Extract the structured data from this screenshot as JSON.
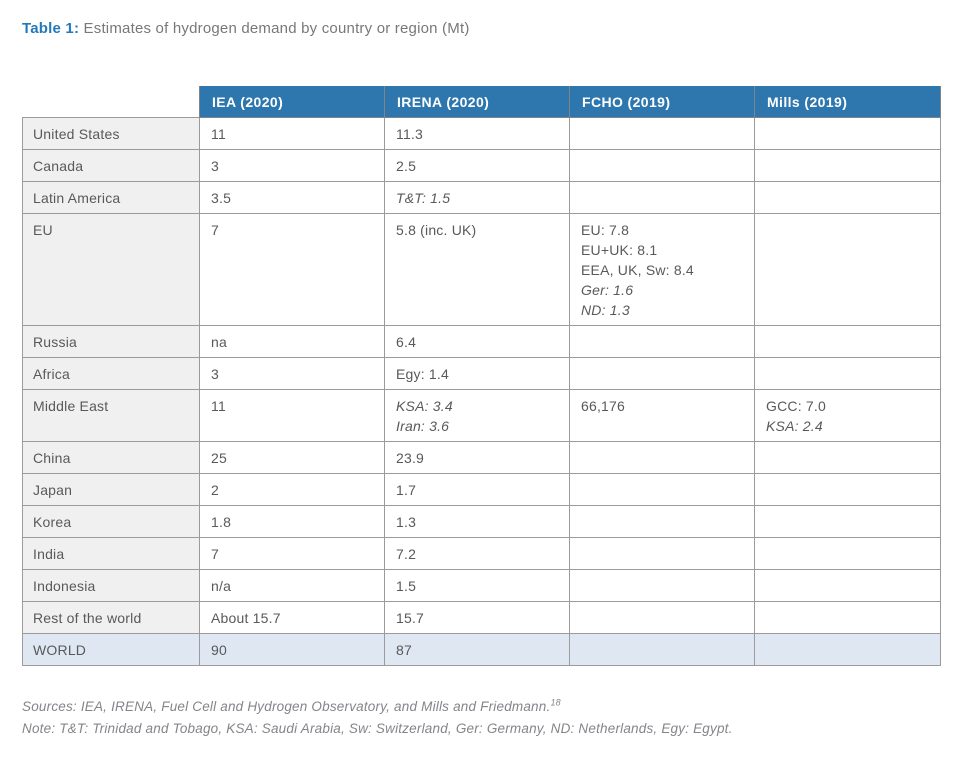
{
  "page": {
    "title_label": "Table 1:",
    "title_text": " Estimates of hydrogen demand by country or region (Mt)"
  },
  "table": {
    "headers": [
      "IEA (2020)",
      "IRENA (2020)",
      "FCHO (2019)",
      "Mills (2019)"
    ],
    "rows": [
      {
        "region": "United States",
        "cells": [
          [
            {
              "t": "11"
            }
          ],
          [
            {
              "t": "11.3"
            }
          ],
          [],
          []
        ]
      },
      {
        "region": "Canada",
        "cells": [
          [
            {
              "t": "3"
            }
          ],
          [
            {
              "t": "2.5"
            }
          ],
          [],
          []
        ]
      },
      {
        "region": "Latin America",
        "cells": [
          [
            {
              "t": "3.5"
            }
          ],
          [
            {
              "t": "T&T: 1.5",
              "i": true
            }
          ],
          [],
          []
        ]
      },
      {
        "region": "EU",
        "cells": [
          [
            {
              "t": "7"
            }
          ],
          [
            {
              "t": "5.8 (inc. UK)"
            }
          ],
          [
            {
              "t": "EU: 7.8"
            },
            {
              "t": "EU+UK: 8.1"
            },
            {
              "t": "EEA, UK, Sw: 8.4"
            },
            {
              "t": "Ger: 1.6",
              "i": true
            },
            {
              "t": "ND: 1.3",
              "i": true
            }
          ],
          []
        ]
      },
      {
        "region": "Russia",
        "cells": [
          [
            {
              "t": "na"
            }
          ],
          [
            {
              "t": "6.4"
            }
          ],
          [],
          []
        ]
      },
      {
        "region": "Africa",
        "cells": [
          [
            {
              "t": "3"
            }
          ],
          [
            {
              "t": "Egy: 1.4"
            }
          ],
          [],
          []
        ]
      },
      {
        "region": "Middle East",
        "cells": [
          [
            {
              "t": "11"
            }
          ],
          [
            {
              "t": "KSA: 3.4",
              "i": true
            },
            {
              "t": "Iran: 3.6",
              "i": true
            }
          ],
          [
            {
              "t": "66,176"
            }
          ],
          [
            {
              "t": "GCC: 7.0"
            },
            {
              "t": "KSA: 2.4",
              "i": true
            }
          ]
        ]
      },
      {
        "region": "China",
        "cells": [
          [
            {
              "t": "25"
            }
          ],
          [
            {
              "t": "23.9"
            }
          ],
          [],
          []
        ]
      },
      {
        "region": "Japan",
        "cells": [
          [
            {
              "t": "2"
            }
          ],
          [
            {
              "t": "1.7"
            }
          ],
          [],
          []
        ]
      },
      {
        "region": "Korea",
        "cells": [
          [
            {
              "t": "1.8"
            }
          ],
          [
            {
              "t": "1.3"
            }
          ],
          [],
          []
        ]
      },
      {
        "region": "India",
        "cells": [
          [
            {
              "t": "7"
            }
          ],
          [
            {
              "t": "7.2"
            }
          ],
          [],
          []
        ]
      },
      {
        "region": "Indonesia",
        "cells": [
          [
            {
              "t": "n/a"
            }
          ],
          [
            {
              "t": "1.5"
            }
          ],
          [],
          []
        ]
      },
      {
        "region": "Rest of the world",
        "cells": [
          [
            {
              "t": "About 15.7"
            }
          ],
          [
            {
              "t": "15.7"
            }
          ],
          [],
          []
        ]
      },
      {
        "region": "WORLD",
        "total": true,
        "cells": [
          [
            {
              "t": "90"
            }
          ],
          [
            {
              "t": "87"
            }
          ],
          [],
          []
        ]
      }
    ]
  },
  "footer": {
    "sources": "Sources: IEA, IRENA, Fuel Cell and Hydrogen Observatory, and Mills and Friedmann.",
    "sources_sup": "18",
    "note": "Note: T&T: Trinidad and Tobago, KSA: Saudi Arabia, Sw: Switzerland, Ger: Germany, ND: Netherlands, Egy: Egypt."
  },
  "colors": {
    "header_bg": "#2d77ae",
    "title_accent": "#2579b8",
    "region_col_bg": "#f0f0f0",
    "total_row_bg": "#dfe8f2",
    "border": "#9b9b9b",
    "body_text": "#58595b",
    "muted_text": "#84858a"
  }
}
